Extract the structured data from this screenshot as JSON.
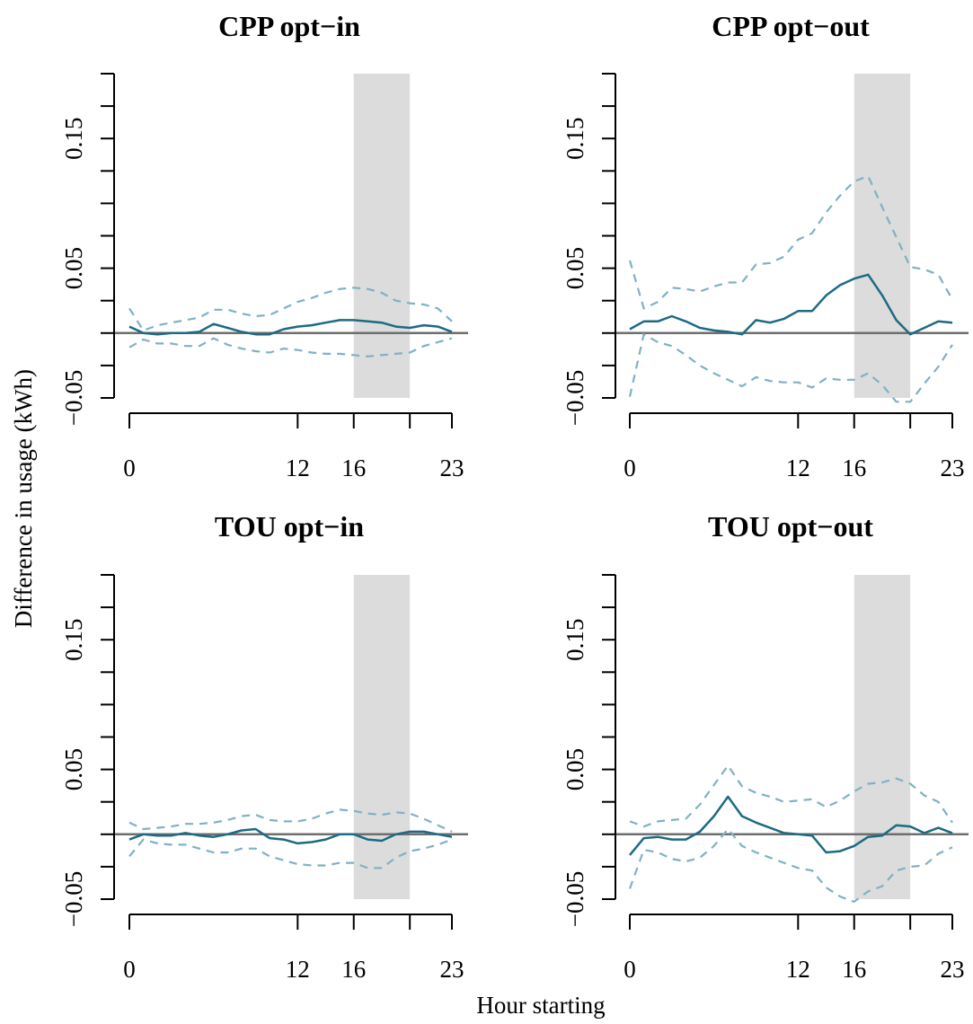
{
  "figure": {
    "ylabel": "Difference in usage (kWh)",
    "xlabel": "Hour starting"
  },
  "chart_data": [
    {
      "type": "line",
      "title": "CPP opt−in",
      "x": [
        0,
        1,
        2,
        3,
        4,
        5,
        6,
        7,
        8,
        9,
        10,
        11,
        12,
        13,
        14,
        15,
        16,
        17,
        18,
        19,
        20,
        21,
        22,
        23
      ],
      "xticks": [
        0,
        12,
        16,
        23
      ],
      "xtick_labels": [
        "0",
        "12",
        "16",
        "23"
      ],
      "xtick_marks": [
        0,
        12,
        16,
        20,
        23
      ],
      "ylim": [
        -0.05,
        0.2
      ],
      "yticks": [
        -0.05,
        0.05,
        0.15
      ],
      "ytick_labels": [
        "−0.05",
        "0.05",
        "0.15"
      ],
      "shaded_region": [
        16,
        20
      ],
      "series": [
        {
          "role": "estimate",
          "values": [
            0.005,
            0.0,
            -0.001,
            0.0,
            0.0,
            0.001,
            0.007,
            0.004,
            0.001,
            -0.001,
            -0.001,
            0.003,
            0.005,
            0.006,
            0.008,
            0.01,
            0.01,
            0.009,
            0.008,
            0.005,
            0.004,
            0.006,
            0.005,
            0.001
          ]
        },
        {
          "role": "upper_ci",
          "values": [
            0.019,
            0.002,
            0.006,
            0.008,
            0.01,
            0.012,
            0.018,
            0.018,
            0.015,
            0.013,
            0.014,
            0.019,
            0.024,
            0.027,
            0.031,
            0.034,
            0.035,
            0.034,
            0.031,
            0.025,
            0.023,
            0.022,
            0.019,
            0.009
          ]
        },
        {
          "role": "lower_ci",
          "values": [
            -0.011,
            -0.005,
            -0.008,
            -0.008,
            -0.01,
            -0.01,
            -0.004,
            -0.009,
            -0.012,
            -0.014,
            -0.015,
            -0.012,
            -0.013,
            -0.015,
            -0.016,
            -0.016,
            -0.017,
            -0.018,
            -0.017,
            -0.016,
            -0.015,
            -0.01,
            -0.007,
            -0.004
          ]
        }
      ]
    },
    {
      "type": "line",
      "title": "CPP opt−out",
      "x": [
        0,
        1,
        2,
        3,
        4,
        5,
        6,
        7,
        8,
        9,
        10,
        11,
        12,
        13,
        14,
        15,
        16,
        17,
        18,
        19,
        20,
        21,
        22,
        23
      ],
      "xticks": [
        0,
        12,
        16,
        23
      ],
      "xtick_labels": [
        "0",
        "12",
        "16",
        "23"
      ],
      "xtick_marks": [
        0,
        12,
        16,
        20,
        23
      ],
      "ylim": [
        -0.05,
        0.2
      ],
      "yticks": [
        -0.05,
        0.05,
        0.15
      ],
      "ytick_labels": [
        "−0.05",
        "0.05",
        "0.15"
      ],
      "shaded_region": [
        16,
        20
      ],
      "series": [
        {
          "role": "estimate",
          "values": [
            0.003,
            0.009,
            0.009,
            0.013,
            0.009,
            0.004,
            0.002,
            0.001,
            -0.001,
            0.01,
            0.008,
            0.011,
            0.017,
            0.017,
            0.029,
            0.037,
            0.042,
            0.045,
            0.029,
            0.01,
            -0.001,
            0.004,
            0.009,
            0.008
          ]
        },
        {
          "role": "upper_ci",
          "values": [
            0.056,
            0.019,
            0.024,
            0.035,
            0.034,
            0.032,
            0.036,
            0.039,
            0.039,
            0.053,
            0.054,
            0.059,
            0.072,
            0.077,
            0.093,
            0.106,
            0.117,
            0.121,
            0.097,
            0.074,
            0.051,
            0.049,
            0.045,
            0.026
          ]
        },
        {
          "role": "lower_ci",
          "values": [
            -0.049,
            -0.001,
            -0.007,
            -0.01,
            -0.017,
            -0.025,
            -0.031,
            -0.036,
            -0.041,
            -0.034,
            -0.037,
            -0.038,
            -0.038,
            -0.042,
            -0.035,
            -0.036,
            -0.036,
            -0.031,
            -0.04,
            -0.053,
            -0.053,
            -0.039,
            -0.026,
            -0.009
          ]
        }
      ]
    },
    {
      "type": "line",
      "title": "TOU opt−in",
      "x": [
        0,
        1,
        2,
        3,
        4,
        5,
        6,
        7,
        8,
        9,
        10,
        11,
        12,
        13,
        14,
        15,
        16,
        17,
        18,
        19,
        20,
        21,
        22,
        23
      ],
      "xticks": [
        0,
        12,
        16,
        23
      ],
      "xtick_labels": [
        "0",
        "12",
        "16",
        "23"
      ],
      "xtick_marks": [
        0,
        12,
        16,
        20,
        23
      ],
      "ylim": [
        -0.05,
        0.2
      ],
      "yticks": [
        -0.05,
        0.05,
        0.15
      ],
      "ytick_labels": [
        "−0.05",
        "0.05",
        "0.15"
      ],
      "shaded_region": [
        16,
        20
      ],
      "series": [
        {
          "role": "estimate",
          "values": [
            -0.004,
            0.0,
            -0.001,
            -0.001,
            0.001,
            -0.001,
            -0.002,
            0.0,
            0.003,
            0.004,
            -0.003,
            -0.004,
            -0.007,
            -0.006,
            -0.004,
            0.0,
            0.0,
            -0.004,
            -0.005,
            0.0,
            0.002,
            0.002,
            0.0,
            -0.002
          ]
        },
        {
          "role": "upper_ci",
          "values": [
            0.009,
            0.004,
            0.005,
            0.006,
            0.008,
            0.008,
            0.009,
            0.011,
            0.014,
            0.015,
            0.011,
            0.01,
            0.01,
            0.012,
            0.016,
            0.019,
            0.018,
            0.016,
            0.015,
            0.017,
            0.016,
            0.012,
            0.007,
            0.002
          ]
        },
        {
          "role": "lower_ci",
          "values": [
            -0.017,
            -0.004,
            -0.007,
            -0.008,
            -0.008,
            -0.011,
            -0.014,
            -0.014,
            -0.011,
            -0.011,
            -0.017,
            -0.02,
            -0.023,
            -0.024,
            -0.024,
            -0.022,
            -0.022,
            -0.026,
            -0.026,
            -0.018,
            -0.013,
            -0.011,
            -0.008,
            -0.004
          ]
        }
      ]
    },
    {
      "type": "line",
      "title": "TOU opt−out",
      "x": [
        0,
        1,
        2,
        3,
        4,
        5,
        6,
        7,
        8,
        9,
        10,
        11,
        12,
        13,
        14,
        15,
        16,
        17,
        18,
        19,
        20,
        21,
        22,
        23
      ],
      "xticks": [
        0,
        12,
        16,
        23
      ],
      "xtick_labels": [
        "0",
        "12",
        "16",
        "23"
      ],
      "xtick_marks": [
        0,
        12,
        16,
        20,
        23
      ],
      "ylim": [
        -0.05,
        0.2
      ],
      "yticks": [
        -0.05,
        0.05,
        0.15
      ],
      "ytick_labels": [
        "−0.05",
        "0.05",
        "0.15"
      ],
      "shaded_region": [
        16,
        20
      ],
      "series": [
        {
          "role": "estimate",
          "values": [
            -0.016,
            -0.003,
            -0.002,
            -0.004,
            -0.004,
            0.002,
            0.014,
            0.029,
            0.014,
            0.009,
            0.005,
            0.001,
            0.0,
            -0.001,
            -0.014,
            -0.013,
            -0.009,
            -0.002,
            -0.001,
            0.007,
            0.006,
            0.001,
            0.005,
            0.001
          ]
        },
        {
          "role": "upper_ci",
          "values": [
            0.01,
            0.006,
            0.01,
            0.011,
            0.012,
            0.023,
            0.038,
            0.053,
            0.037,
            0.032,
            0.029,
            0.025,
            0.026,
            0.027,
            0.021,
            0.026,
            0.033,
            0.039,
            0.04,
            0.043,
            0.039,
            0.03,
            0.025,
            0.009
          ]
        },
        {
          "role": "lower_ci",
          "values": [
            -0.042,
            -0.012,
            -0.014,
            -0.019,
            -0.021,
            -0.018,
            -0.009,
            0.004,
            -0.009,
            -0.014,
            -0.018,
            -0.022,
            -0.026,
            -0.028,
            -0.041,
            -0.048,
            -0.052,
            -0.044,
            -0.04,
            -0.028,
            -0.025,
            -0.024,
            -0.015,
            -0.01
          ]
        }
      ]
    }
  ]
}
